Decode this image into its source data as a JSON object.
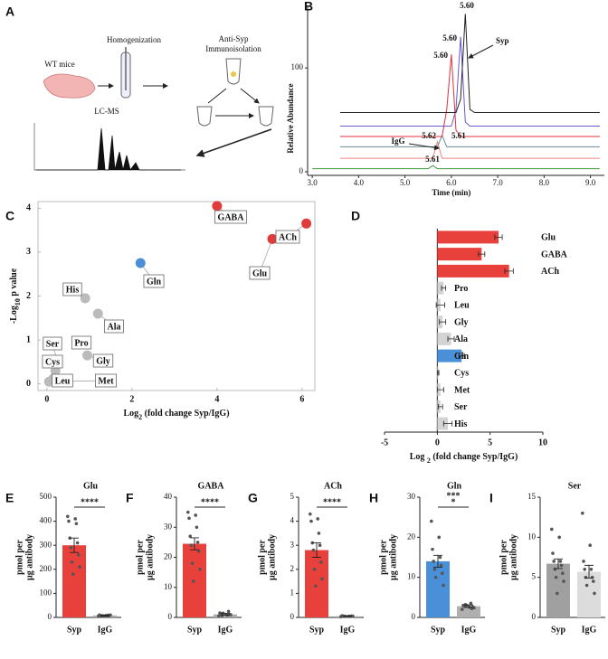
{
  "diagram": {
    "label": "A",
    "mice": "WT mice",
    "step1": "Homogenization",
    "step2": [
      "Anti-Syp",
      "Immunoisolation"
    ],
    "step3": "LC-MS"
  },
  "chart_data": [
    {
      "label": "B",
      "type": "line",
      "xlabel": "Time (min)",
      "ylabel": "Relative Abundance",
      "x": [
        3.0,
        3.6,
        5.3,
        5.5,
        5.6,
        5.7,
        5.8,
        5.9,
        6.0,
        6.1,
        6.2,
        6.3,
        6.4,
        6.5,
        9.2
      ],
      "xlim": [
        2.9,
        9.3
      ],
      "xticks": [
        {
          "value": 3,
          "label": "3.0"
        },
        {
          "value": 4,
          "label": "4.0"
        },
        {
          "value": 5,
          "label": "5.0"
        },
        {
          "value": 6,
          "label": "6.0"
        },
        {
          "value": 7,
          "label": "7.0"
        },
        {
          "value": 8,
          "label": "8.0"
        },
        {
          "value": 9,
          "label": "9.0"
        }
      ],
      "ylim": [
        0,
        155
      ],
      "yticks": [
        0,
        100
      ],
      "series": [
        {
          "color": "#3a9a3a",
          "values": [
            3,
            3,
            3,
            3,
            6,
            3,
            3,
            3,
            3,
            3,
            3,
            3,
            3,
            3,
            3
          ]
        },
        {
          "color": "#f08080",
          "values": [
            null,
            13,
            13,
            13,
            13,
            29,
            13,
            13,
            13,
            13,
            13,
            13,
            13,
            13,
            13
          ]
        },
        {
          "color": "#6a8a9a",
          "values": [
            null,
            24,
            24,
            24,
            24,
            24,
            35,
            24,
            24,
            24,
            24,
            24,
            24,
            24,
            24
          ]
        },
        {
          "color": "#e0303a",
          "values": [
            null,
            34,
            34,
            34,
            34,
            34,
            34,
            60,
            113,
            40,
            34,
            34,
            34,
            34,
            34
          ]
        },
        {
          "color": "#6a5acd",
          "values": [
            null,
            44,
            44,
            44,
            44,
            44,
            44,
            44,
            44,
            60,
            130,
            48,
            44,
            44,
            44
          ]
        },
        {
          "color": "#222222",
          "values": [
            null,
            57,
            57,
            57,
            57,
            57,
            57,
            57,
            57,
            57,
            70,
            152,
            60,
            57,
            57
          ]
        }
      ],
      "annotations": [
        "5.60",
        "5.60",
        "5.60",
        "Syp",
        "5.61",
        "IgG",
        "5.62",
        "5.61"
      ]
    },
    {
      "label": "C",
      "type": "scatter",
      "xlabel": [
        "Log",
        "2",
        " (fold change Syp/IgG)"
      ],
      "ylabel": [
        "-Log",
        "10",
        " p value"
      ],
      "labels": [
        "GABA",
        "ACh",
        "Glu",
        "Gln",
        "His",
        "Ala",
        "Pro",
        "Gly",
        "Ser",
        "Cys",
        "Leu",
        "Met"
      ],
      "x": [
        4.0,
        6.1,
        5.3,
        2.2,
        0.9,
        1.2,
        0.9,
        0.95,
        0.25,
        0.2,
        0.15,
        0.05
      ],
      "values": [
        4.05,
        3.65,
        3.3,
        2.75,
        1.95,
        1.6,
        0.95,
        0.65,
        0.5,
        0.3,
        0.12,
        0.05
      ],
      "colors": [
        "#e03c3c",
        "#e03c3c",
        "#e03c3c",
        "#4a8fd6",
        "#bbbbbb",
        "#bbbbbb",
        "#bbbbbb",
        "#bbbbbb",
        "#bbbbbb",
        "#bbbbbb",
        "#bbbbbb",
        "#bbbbbb"
      ],
      "xlim": [
        -0.21,
        6.3
      ],
      "xticks": [
        0,
        2,
        4,
        6
      ],
      "ylim": [
        -0.15,
        4.15
      ],
      "yticks": [
        0,
        1,
        2,
        3,
        4
      ]
    },
    {
      "label": "D",
      "type": "hbar",
      "xlabel": [
        "Log ",
        "2",
        " (fold change Syp/IgG)"
      ],
      "categories": [
        "Glu",
        "GABA",
        "ACh",
        "Pro",
        "Leu",
        "Gly",
        "Ala",
        "Gln",
        "Cys",
        "Met",
        "Ser",
        "His"
      ],
      "values": [
        5.8,
        4.2,
        6.8,
        0.6,
        0.3,
        0.5,
        1.3,
        2.3,
        0.1,
        0.3,
        0.3,
        1.0
      ],
      "errors": [
        0.35,
        0.3,
        0.4,
        0.2,
        0.4,
        0.3,
        0.3,
        0.25,
        0.05,
        0.3,
        0.2,
        0.4
      ],
      "colors": [
        "#e8413c",
        "#e8413c",
        "#e8413c",
        "#d3d3d3",
        "#d3d3d3",
        "#d3d3d3",
        "#d3d3d3",
        "#4a90d9",
        "#d3d3d3",
        "#d3d3d3",
        "#d3d3d3",
        "#d3d3d3"
      ],
      "xlim": [
        -5,
        10
      ],
      "xticks": [
        -5,
        0,
        5,
        10
      ]
    },
    {
      "label": "E",
      "type": "bar",
      "title": "Glu",
      "ylabel": [
        "pmol per",
        "µg antibody"
      ],
      "categories": [
        "Syp",
        "IgG"
      ],
      "values": [
        300,
        8
      ],
      "errors": [
        30,
        2
      ],
      "colors": [
        "#e8413c",
        "#aaaaaa"
      ],
      "points": [
        [
          420,
          410,
          400,
          390,
          330,
          310,
          290,
          260,
          230,
          210,
          180
        ],
        [
          6,
          8,
          10,
          5,
          7,
          9,
          6,
          8,
          7,
          10,
          5
        ]
      ],
      "ylim": [
        0,
        500
      ],
      "yticks": [
        0,
        100,
        200,
        300,
        400,
        500
      ],
      "significance": [
        "****"
      ]
    },
    {
      "label": "F",
      "type": "bar",
      "title": "GABA",
      "ylabel": [
        "pmol per",
        "µg antibody"
      ],
      "categories": [
        "Syp",
        "IgG"
      ],
      "values": [
        24.5,
        1
      ],
      "errors": [
        2,
        0.3
      ],
      "colors": [
        "#e8413c",
        "#aaaaaa"
      ],
      "points": [
        [
          35,
          34,
          33,
          30,
          27,
          25,
          24,
          22,
          18,
          16,
          12
        ],
        [
          0.5,
          1,
          1.5,
          0.8,
          1.2,
          2,
          0.6,
          1,
          1.4,
          0.9
        ]
      ],
      "ylim": [
        0,
        40
      ],
      "yticks": [
        0,
        10,
        20,
        30,
        40
      ],
      "significance": [
        "****"
      ]
    },
    {
      "label": "G",
      "type": "bar",
      "title": "ACh",
      "ylabel": [
        "pmol per",
        "µg antibody"
      ],
      "categories": [
        "Syp",
        "IgG"
      ],
      "values": [
        2.8,
        0.05
      ],
      "errors": [
        0.3,
        0.01
      ],
      "colors": [
        "#e8413c",
        "#aaaaaa"
      ],
      "points": [
        [
          4.3,
          4.1,
          4,
          3.5,
          3.1,
          3,
          2.8,
          2.3,
          2,
          1.6,
          1.3
        ],
        [
          0.03,
          0.05,
          0.07,
          0.04,
          0.06,
          0.05,
          0.04,
          0.06,
          0.05,
          0.05
        ]
      ],
      "ylim": [
        0,
        5
      ],
      "yticks": [
        0,
        1,
        2,
        3,
        4,
        5
      ],
      "significance": [
        "****"
      ]
    },
    {
      "label": "H",
      "type": "bar",
      "title": "Gln",
      "ylabel": [
        "pmol per",
        "µg antibody"
      ],
      "categories": [
        "Syp",
        "IgG"
      ],
      "values": [
        14,
        2.8
      ],
      "errors": [
        1.5,
        0.3
      ],
      "colors": [
        "#4a90d9",
        "#b0b0b0"
      ],
      "points": [
        [
          24,
          20,
          17,
          15,
          14,
          13,
          12,
          11,
          10,
          8
        ],
        [
          2,
          2.5,
          3,
          3.5,
          2.8,
          2.2,
          3.2,
          2.6,
          3,
          2.4
        ]
      ],
      "ylim": [
        0,
        30
      ],
      "yticks": [
        0,
        10,
        20,
        30
      ],
      "significance": [
        "***",
        "*"
      ]
    },
    {
      "label": "I",
      "type": "bar",
      "title": "Ser",
      "ylabel": [
        "pmol per",
        "µg antibody"
      ],
      "categories": [
        "Syp",
        "IgG"
      ],
      "values": [
        6.7,
        5.7
      ],
      "errors": [
        0.6,
        0.8
      ],
      "colors": [
        "#a0a0a0",
        "#dcdcdc"
      ],
      "points": [
        [
          11,
          10,
          8,
          7,
          7,
          6.5,
          6,
          5.5,
          5,
          4.5,
          3
        ],
        [
          13,
          9,
          7,
          6,
          6,
          5,
          5,
          4.5,
          4,
          3
        ]
      ],
      "ylim": [
        0,
        15
      ],
      "yticks": [
        0,
        5,
        10,
        15
      ]
    }
  ]
}
